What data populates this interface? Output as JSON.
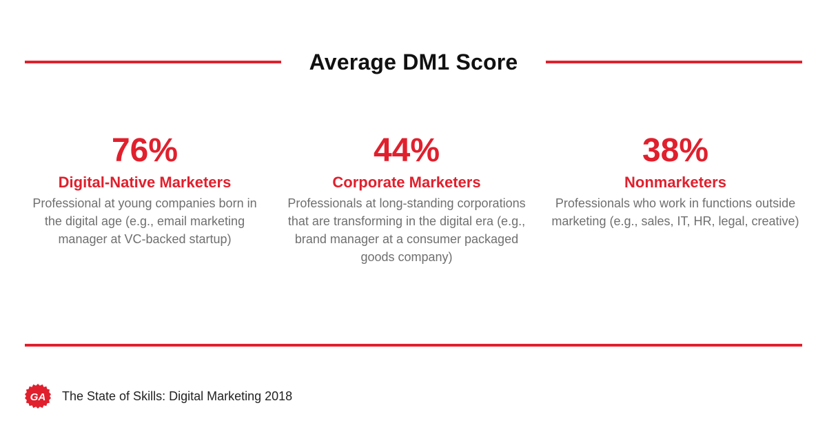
{
  "colors": {
    "accent": "#e0202d",
    "heading": "#111111",
    "body": "#6f6f6f"
  },
  "header": {
    "title": "Average DM1 Score"
  },
  "stats": [
    {
      "percent": "76%",
      "label": "Digital-Native Marketers",
      "description": "Professional at young companies born in the digital age (e.g., email marketing manager at VC-backed startup)"
    },
    {
      "percent": "44%",
      "label": "Corporate Marketers",
      "description": "Professionals at long-standing corporations that are transforming in the digital era (e.g., brand manager at a consumer packaged goods company)"
    },
    {
      "percent": "38%",
      "label": "Nonmarketers",
      "description": "Professionals who work in functions outside marketing (e.g., sales, IT, HR, legal, creative)"
    }
  ],
  "footer": {
    "logo_icon": "ga-logo-icon",
    "logo_text": "GA",
    "source": "The State of Skills: Digital Marketing 2018"
  }
}
